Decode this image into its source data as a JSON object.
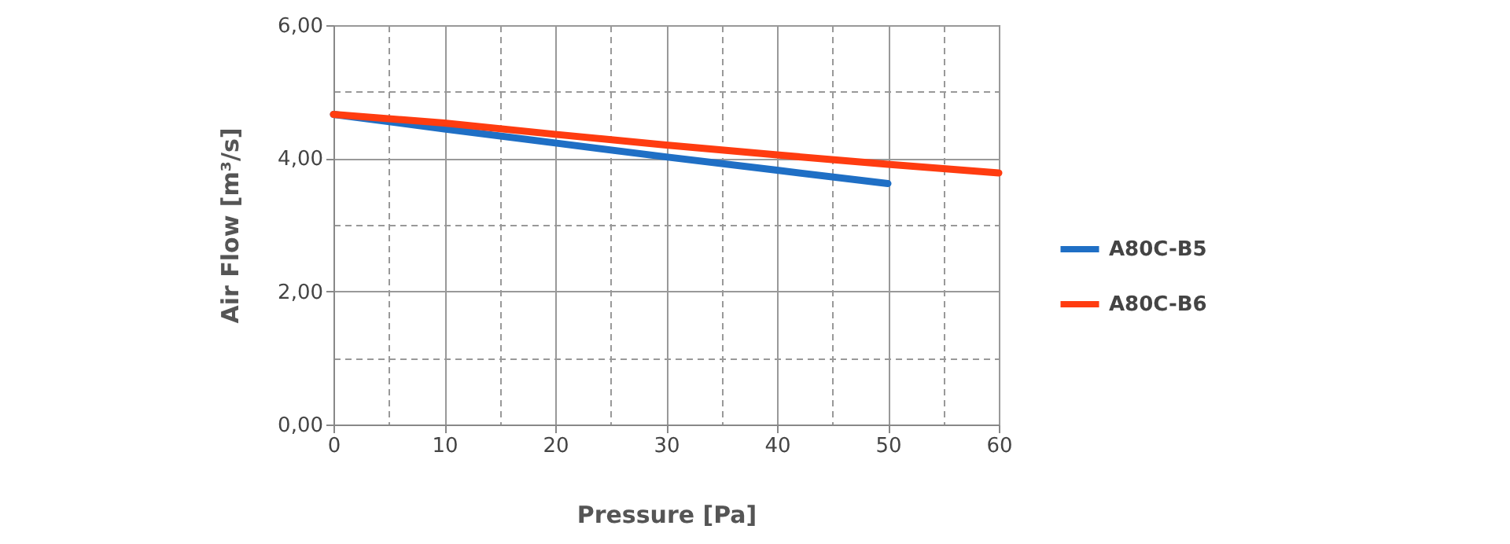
{
  "chart_data": {
    "type": "line",
    "xlabel": "Pressure [Pa]",
    "ylabel": "Air Flow [m³/s]",
    "x": [
      0,
      10,
      20,
      30,
      40,
      50,
      60
    ],
    "series": [
      {
        "name": "A80C-B5",
        "color": "#1f6fc5",
        "values": [
          4.66,
          4.44,
          4.23,
          4.02,
          3.82,
          3.62,
          null
        ]
      },
      {
        "name": "A80C-B6",
        "color": "#ff3c10",
        "values": [
          4.66,
          4.53,
          4.36,
          4.2,
          4.05,
          3.91,
          3.78
        ]
      }
    ],
    "xlim": [
      0,
      60
    ],
    "xticks": [
      0,
      {
        "value": 5,
        "label": null
      },
      10,
      {
        "value": 15,
        "label": null
      },
      20,
      {
        "value": 25,
        "label": null
      },
      30,
      {
        "value": 35,
        "label": null
      },
      40,
      {
        "value": 45,
        "label": null
      },
      50,
      {
        "value": 55,
        "label": null
      },
      60
    ],
    "ylim": [
      0,
      6
    ],
    "yticks": [
      {
        "value": 0,
        "label": "0,00"
      },
      {
        "value": 1,
        "label": null
      },
      {
        "value": 2,
        "label": "2,00"
      },
      {
        "value": 3,
        "label": null
      },
      {
        "value": 4,
        "label": "4,00"
      },
      {
        "value": 5,
        "label": null
      },
      {
        "value": 6,
        "label": "6,00"
      }
    ],
    "grid": true,
    "legend": "right",
    "marker": "none",
    "line_style": "solid"
  }
}
